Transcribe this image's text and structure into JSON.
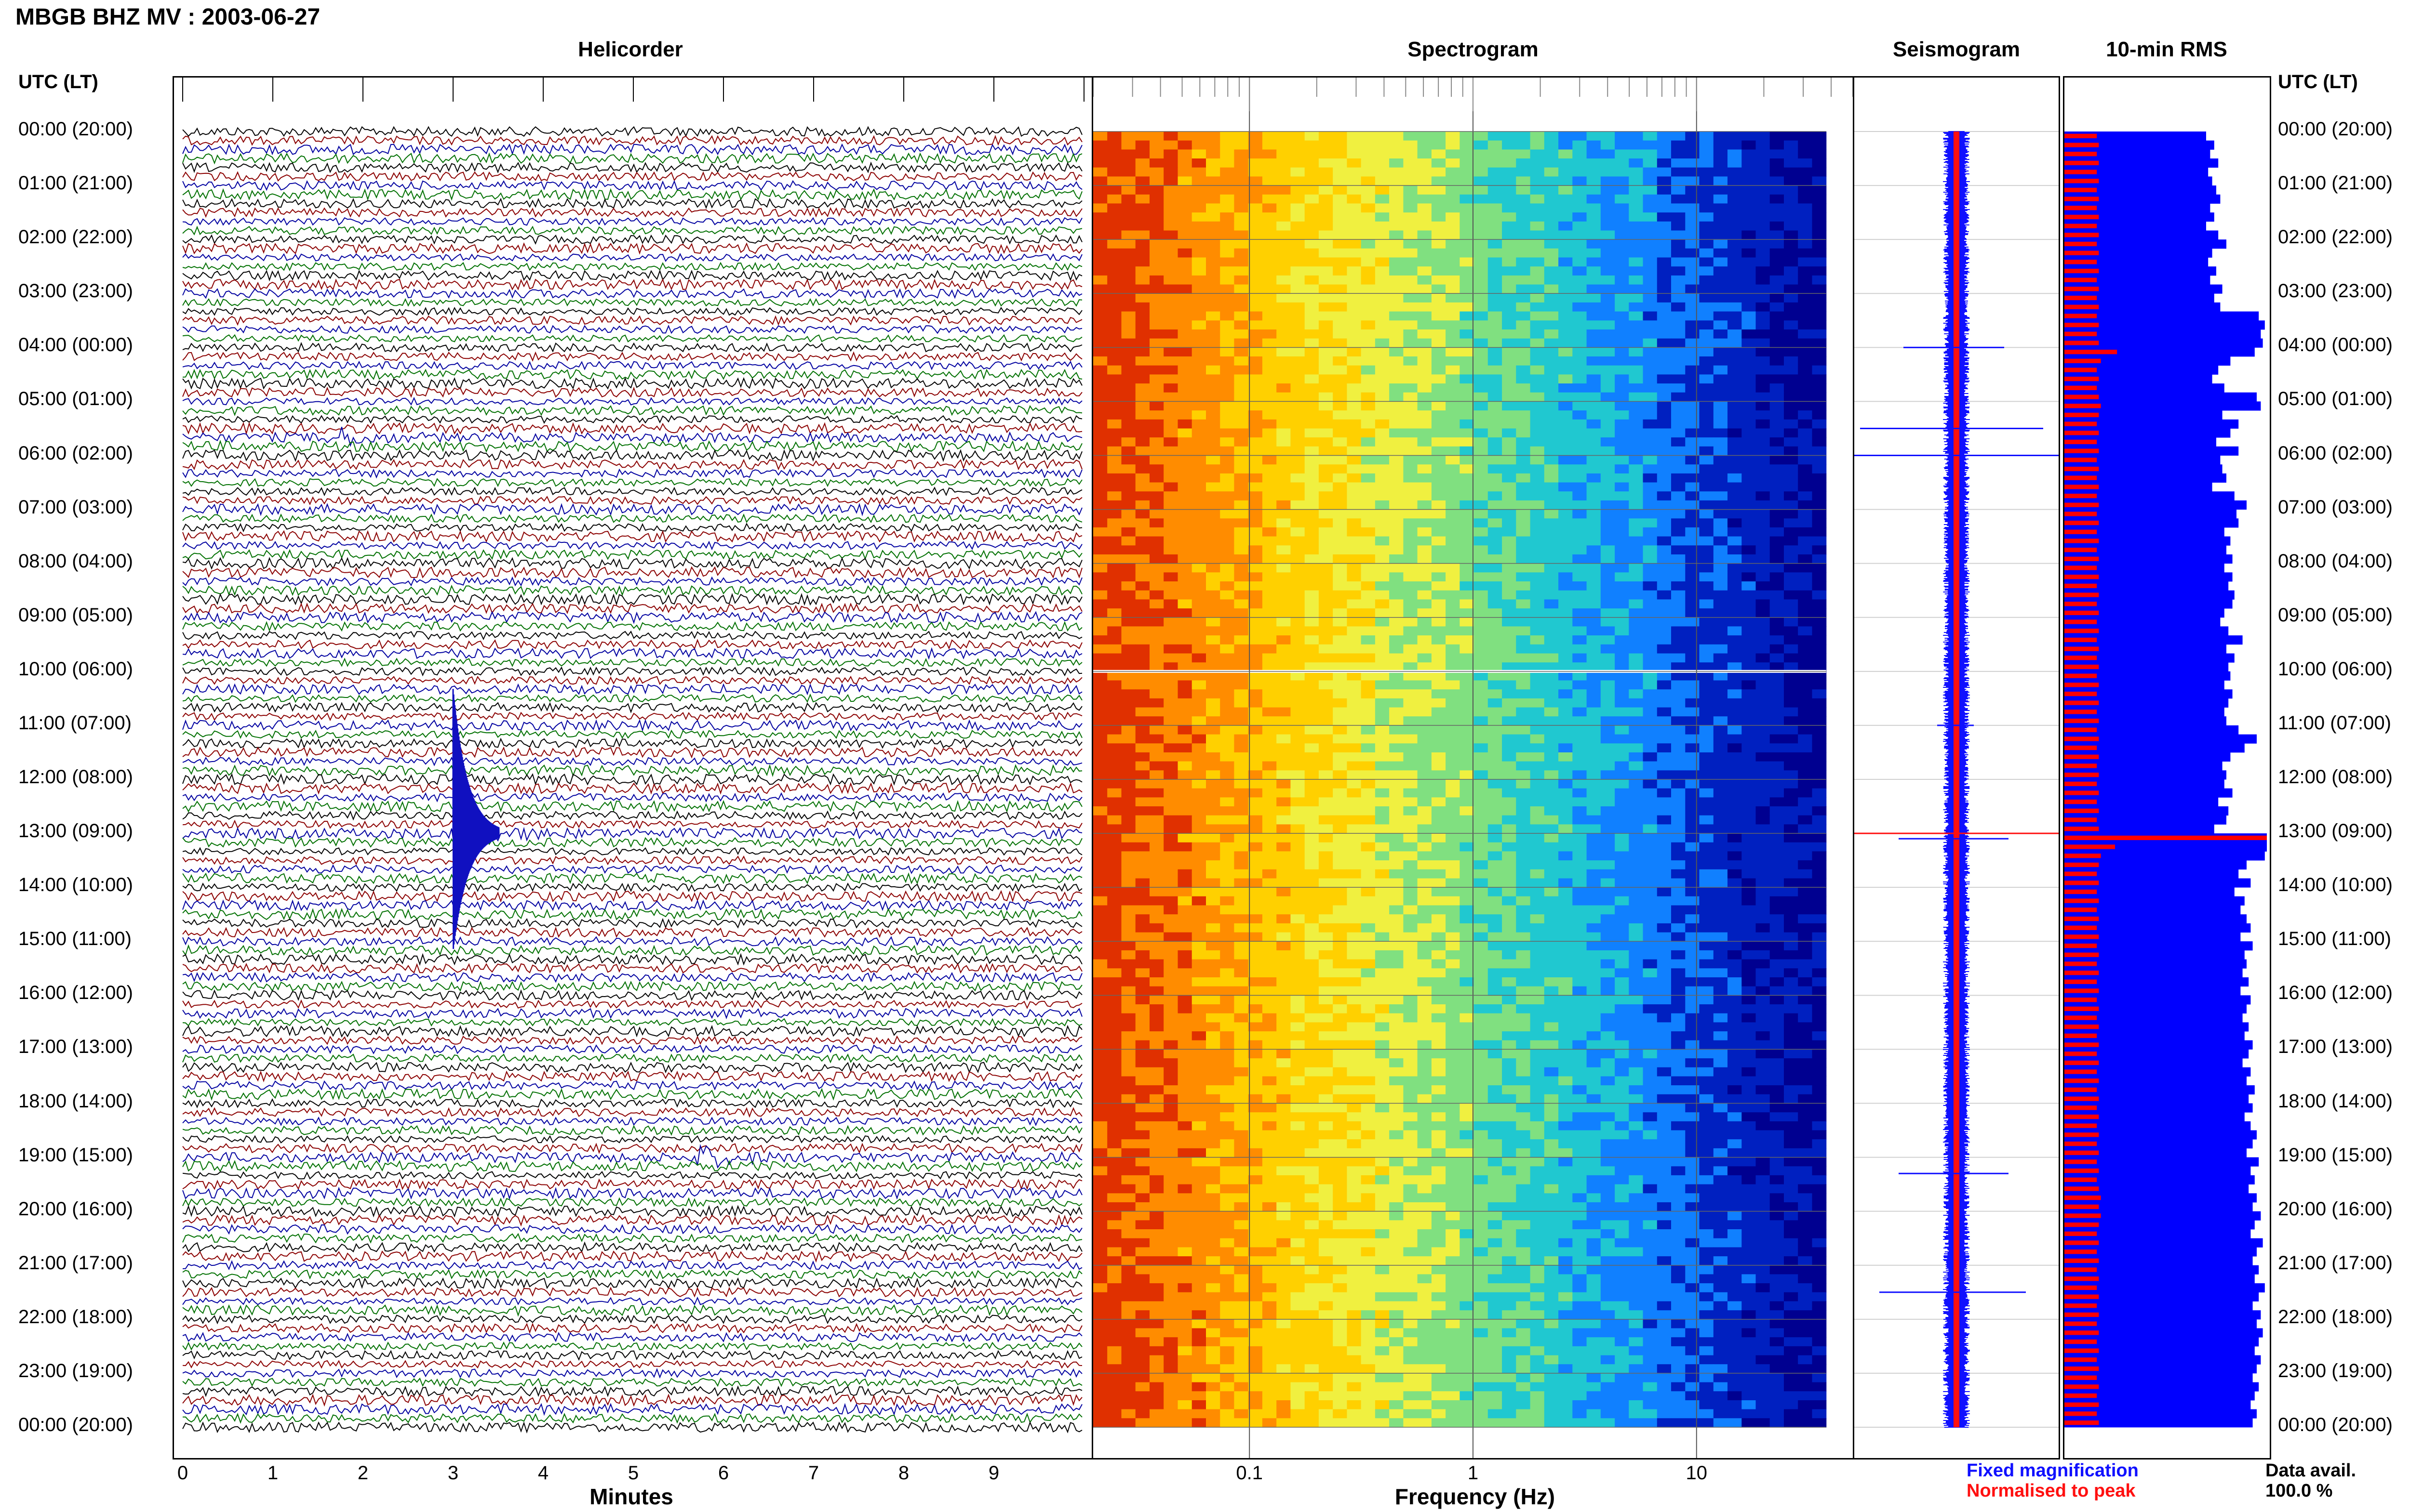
{
  "header": {
    "title": "MBGB BHZ MV : 2003-06-27"
  },
  "panels": {
    "helicorder": "Helicorder",
    "spectrogram": "Spectrogram",
    "seismogram": "Seismogram",
    "rms": "10-min RMS"
  },
  "axis_labels": {
    "left_time": "UTC (LT)",
    "right_time": "UTC (LT)",
    "minutes": "Minutes",
    "frequency": "Frequency (Hz)"
  },
  "time_labels": [
    "00:00 (20:00)",
    "01:00 (21:00)",
    "02:00 (22:00)",
    "03:00 (23:00)",
    "04:00 (00:00)",
    "05:00 (01:00)",
    "06:00 (02:00)",
    "07:00 (03:00)",
    "08:00 (04:00)",
    "09:00 (05:00)",
    "10:00 (06:00)",
    "11:00 (07:00)",
    "12:00 (08:00)",
    "13:00 (09:00)",
    "14:00 (10:00)",
    "15:00 (11:00)",
    "16:00 (12:00)",
    "17:00 (13:00)",
    "18:00 (14:00)",
    "19:00 (15:00)",
    "20:00 (16:00)",
    "21:00 (17:00)",
    "22:00 (18:00)",
    "23:00 (19:00)",
    "00:00 (20:00)"
  ],
  "minute_ticks": [
    "0",
    "1",
    "2",
    "3",
    "4",
    "5",
    "6",
    "7",
    "8",
    "9"
  ],
  "frequency_ticks": [
    "0.1",
    "1",
    "10"
  ],
  "legend": {
    "fixed": "Fixed magnification",
    "normalised": "Normalised to peak",
    "avail_label": "Data avail.",
    "avail_value": "100.0 %"
  },
  "colors": {
    "trace_cycle": [
      "#000000",
      "#8b0000",
      "#0000a0",
      "#007000"
    ],
    "rms_blue": "#0000ff",
    "rms_red": "#ff0000",
    "spectrogram_ramp": [
      "#e03000",
      "#ff8c00",
      "#ffd000",
      "#f0f040",
      "#80e080",
      "#20c8d0",
      "#1080ff",
      "#0020c0",
      "#000090"
    ]
  },
  "chart_data": [
    {
      "type": "line",
      "title": "Helicorder",
      "xlabel": "Minutes",
      "xlim": [
        0,
        10
      ],
      "rows_per_hour": 6,
      "hours": 24,
      "events": [
        {
          "time": "13:00",
          "minute": 3.0,
          "description": "large event"
        },
        {
          "time": "05:40",
          "minute": 1.6,
          "description": "small event"
        },
        {
          "time": "19:00",
          "minute": 5.7,
          "description": "small event"
        }
      ]
    },
    {
      "type": "heatmap",
      "title": "Spectrogram",
      "xlabel": "Frequency (Hz)",
      "x_scale": "log",
      "xlim": [
        0.02,
        50
      ],
      "data_gap_time": "10:00"
    },
    {
      "type": "bar",
      "title": "10-min RMS",
      "bins_per_hour": 6,
      "series": [
        {
          "name": "Fixed magnification",
          "values": [
            0.7,
            0.74,
            0.72,
            0.76,
            0.71,
            0.73,
            0.75,
            0.77,
            0.72,
            0.74,
            0.7,
            0.76,
            0.8,
            0.73,
            0.71,
            0.75,
            0.72,
            0.78,
            0.74,
            0.77,
            0.96,
            0.99,
            0.97,
            0.98,
            0.94,
            0.82,
            0.76,
            0.73,
            0.79,
            0.95,
            0.97,
            0.78,
            0.86,
            0.82,
            0.75,
            0.86,
            0.77,
            0.78,
            0.8,
            0.73,
            0.84,
            0.9,
            0.85,
            0.86,
            0.79,
            0.82,
            0.8,
            0.83,
            0.79,
            0.83,
            0.81,
            0.84,
            0.83,
            0.79,
            0.77,
            0.81,
            0.88,
            0.8,
            0.84,
            0.81,
            0.82,
            0.79,
            0.83,
            0.81,
            0.79,
            0.8,
            0.86,
            0.95,
            0.89,
            0.82,
            0.78,
            0.8,
            0.79,
            0.83,
            0.76,
            0.81,
            0.8,
            0.74,
            1.0,
            1.0,
            0.99,
            0.9,
            0.86,
            0.92,
            0.84,
            0.89,
            0.87,
            0.9,
            0.92,
            0.87,
            0.93,
            0.89,
            0.9,
            0.88,
            0.91,
            0.87,
            0.92,
            0.9,
            0.88,
            0.91,
            0.89,
            0.93,
            0.91,
            0.88,
            0.92,
            0.9,
            0.94,
            0.91,
            0.93,
            0.89,
            0.92,
            0.95,
            0.93,
            0.9,
            0.96,
            0.92,
            0.94,
            0.91,
            0.95,
            0.93,
            0.97,
            0.94,
            0.92,
            0.98,
            0.95,
            0.93,
            0.96,
            0.94,
            0.99,
            0.96,
            0.93,
            0.97,
            0.95,
            0.98,
            0.96,
            0.94,
            0.97,
            0.95,
            0.93,
            0.96,
            0.94,
            0.92,
            0.95,
            0.93
          ]
        },
        {
          "name": "Normalised to peak",
          "values": [
            0.16,
            0.17,
            0.16,
            0.17,
            0.16,
            0.17,
            0.16,
            0.17,
            0.16,
            0.17,
            0.16,
            0.17,
            0.16,
            0.17,
            0.16,
            0.17,
            0.16,
            0.17,
            0.16,
            0.17,
            0.16,
            0.17,
            0.16,
            0.17,
            0.26,
            0.18,
            0.16,
            0.17,
            0.16,
            0.17,
            0.18,
            0.17,
            0.16,
            0.17,
            0.16,
            0.17,
            0.16,
            0.17,
            0.16,
            0.17,
            0.16,
            0.17,
            0.16,
            0.17,
            0.16,
            0.17,
            0.16,
            0.17,
            0.16,
            0.17,
            0.16,
            0.17,
            0.16,
            0.17,
            0.16,
            0.17,
            0.16,
            0.17,
            0.16,
            0.17,
            0.16,
            0.17,
            0.16,
            0.17,
            0.16,
            0.17,
            0.16,
            0.17,
            0.16,
            0.17,
            0.16,
            0.17,
            0.16,
            0.17,
            0.16,
            0.17,
            0.16,
            0.17,
            1.0,
            0.25,
            0.18,
            0.17,
            0.16,
            0.17,
            0.16,
            0.17,
            0.16,
            0.17,
            0.16,
            0.17,
            0.16,
            0.17,
            0.16,
            0.17,
            0.16,
            0.17,
            0.16,
            0.17,
            0.16,
            0.17,
            0.16,
            0.17,
            0.16,
            0.17,
            0.16,
            0.17,
            0.16,
            0.17,
            0.16,
            0.17,
            0.16,
            0.17,
            0.16,
            0.17,
            0.16,
            0.17,
            0.16,
            0.17,
            0.18,
            0.17,
            0.18,
            0.17,
            0.16,
            0.17,
            0.16,
            0.17,
            0.16,
            0.17,
            0.16,
            0.17,
            0.16,
            0.17,
            0.16,
            0.17,
            0.16,
            0.17,
            0.16,
            0.17,
            0.16,
            0.17,
            0.16,
            0.17,
            0.16,
            0.17
          ]
        }
      ]
    }
  ]
}
